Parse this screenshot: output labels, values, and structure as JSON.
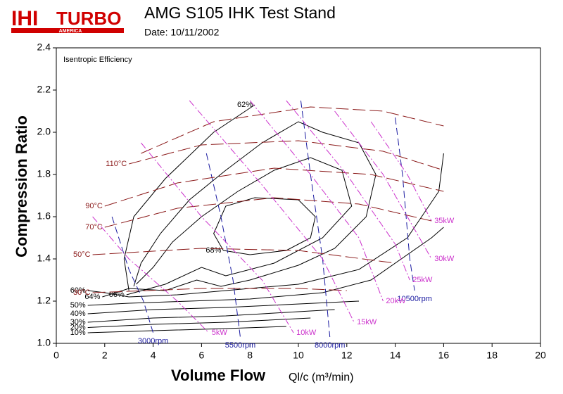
{
  "logo": {
    "brand": "IHI",
    "product": "TURBO",
    "region": "AMERICA"
  },
  "chart_data": {
    "type": "contour",
    "title": "AMG S105 IHK Test Stand",
    "subtitle": "Date: 10/11/2002",
    "annotation": "Isentropic Efficiency",
    "ylabel": "Compression Ratio",
    "xlabel": "Volume Flow",
    "xunit": "Ql/c (m³/min)",
    "xlim": [
      0,
      20
    ],
    "ylim": [
      1.0,
      2.4
    ],
    "xticks": [
      0,
      2,
      4,
      6,
      8,
      10,
      12,
      14,
      16,
      18,
      20
    ],
    "yticks": [
      {
        "value": 1.0,
        "label": "1.0"
      },
      1.2,
      1.4,
      1.6,
      1.8,
      {
        "value": 2.0,
        "label": "2.0"
      },
      2.2,
      2.4
    ],
    "groups": [
      {
        "name": "efficiency",
        "color": "#000000",
        "series": [
          {
            "name": "10%",
            "x": [
              1.3,
              4,
              7,
              9.5
            ],
            "y": [
              1.05,
              1.06,
              1.07,
              1.08
            ]
          },
          {
            "name": "20%",
            "x": [
              1.3,
              4,
              7,
              10.5
            ],
            "y": [
              1.075,
              1.09,
              1.1,
              1.12
            ]
          },
          {
            "name": "30%",
            "x": [
              1.3,
              4,
              7,
              11.5
            ],
            "y": [
              1.1,
              1.12,
              1.13,
              1.16
            ]
          },
          {
            "name": "40%",
            "x": [
              1.3,
              4,
              7,
              12.5
            ],
            "y": [
              1.14,
              1.16,
              1.17,
              1.2
            ]
          },
          {
            "name": "50%",
            "x": [
              1.3,
              3,
              5.5,
              8,
              11,
              13,
              15.5,
              16
            ],
            "y": [
              1.18,
              1.19,
              1.2,
              1.21,
              1.24,
              1.3,
              1.5,
              1.55
            ]
          },
          {
            "name": "60%",
            "x": [
              1.3,
              2,
              3,
              5,
              7,
              10,
              12.5,
              14.5,
              15.8,
              16
            ],
            "y": [
              1.25,
              1.24,
              1.22,
              1.23,
              1.25,
              1.28,
              1.35,
              1.5,
              1.72,
              1.9
            ]
          },
          {
            "name": "64%",
            "x": [
              1.9,
              3,
              4.5,
              5.8,
              6.8,
              8,
              10,
              11.5,
              12.8,
              13.2,
              12.5,
              11,
              10,
              8.5,
              7,
              5.5,
              4.3,
              3.5,
              3.2
            ],
            "y": [
              1.22,
              1.26,
              1.25,
              1.3,
              1.27,
              1.3,
              1.37,
              1.45,
              1.6,
              1.8,
              1.95,
              2.0,
              2.05,
              1.95,
              1.82,
              1.68,
              1.52,
              1.38,
              1.27
            ]
          },
          {
            "name": "66%",
            "x": [
              2.9,
              4.5,
              6,
              7,
              9,
              11,
              12.2,
              11.8,
              10.5,
              9,
              7.5,
              6,
              4.8,
              4,
              3.3
            ],
            "y": [
              1.23,
              1.28,
              1.36,
              1.32,
              1.38,
              1.5,
              1.65,
              1.82,
              1.88,
              1.82,
              1.72,
              1.6,
              1.48,
              1.36,
              1.28
            ]
          },
          {
            "name": "68%",
            "x": [
              6.9,
              6.5,
              7,
              8.2,
              10,
              10.7,
              10.5,
              9.5,
              8,
              6.9
            ],
            "y": [
              1.44,
              1.52,
              1.65,
              1.69,
              1.68,
              1.6,
              1.5,
              1.44,
              1.42,
              1.44
            ]
          },
          {
            "name": "62%",
            "x": [
              8.2,
              6.5,
              4.5,
              3.2,
              2.8,
              3
            ],
            "y": [
              2.13,
              2.0,
              1.78,
              1.6,
              1.4,
              1.25
            ]
          }
        ]
      },
      {
        "name": "speed",
        "color": "#1a1aa0",
        "series": [
          {
            "name": "3000rpm",
            "x": [
              2.3,
              3.0,
              3.6,
              4.0
            ],
            "y": [
              1.6,
              1.35,
              1.2,
              1.05
            ]
          },
          {
            "name": "5500rpm",
            "x": [
              6.2,
              6.8,
              7.3,
              7.6
            ],
            "y": [
              1.9,
              1.6,
              1.3,
              1.03
            ]
          },
          {
            "name": "8000rpm",
            "x": [
              10.1,
              10.5,
              11,
              11.3
            ],
            "y": [
              2.15,
              1.8,
              1.4,
              1.03
            ]
          },
          {
            "name": "10500rpm",
            "x": [
              14.0,
              14.3,
              14.6,
              14.8
            ],
            "y": [
              2.07,
              1.8,
              1.4,
              1.25
            ]
          }
        ]
      },
      {
        "name": "temperature",
        "color": "#8b1a1a",
        "series": [
          {
            "name": "30°C",
            "x": [
              1.5,
              6,
              10,
              12
            ],
            "y": [
              1.24,
              1.26,
              1.26,
              1.25
            ]
          },
          {
            "name": "50°C",
            "x": [
              1.5,
              6,
              10,
              14
            ],
            "y": [
              1.42,
              1.45,
              1.44,
              1.38
            ]
          },
          {
            "name": "70°C",
            "x": [
              2,
              5,
              9,
              12.5,
              15.5
            ],
            "y": [
              1.55,
              1.64,
              1.69,
              1.66,
              1.58
            ]
          },
          {
            "name": "90°C",
            "x": [
              2,
              5,
              9,
              13,
              16
            ],
            "y": [
              1.65,
              1.76,
              1.83,
              1.8,
              1.72
            ]
          },
          {
            "name": "110°C",
            "x": [
              3,
              6,
              10,
              13.5,
              16
            ],
            "y": [
              1.85,
              1.94,
              1.96,
              1.91,
              1.82
            ]
          },
          {
            "x": [
              3.5,
              6.5,
              10.5,
              13.5,
              16
            ],
            "y": [
              1.9,
              2.05,
              2.12,
              2.1,
              2.03
            ]
          }
        ]
      },
      {
        "name": "power",
        "color": "#cc33cc",
        "series": [
          {
            "name": "5kW",
            "x": [
              1.5,
              3,
              5,
              6.3
            ],
            "y": [
              1.6,
              1.4,
              1.2,
              1.05
            ]
          },
          {
            "name": "10kW",
            "x": [
              3.5,
              6,
              8.5,
              9.8
            ],
            "y": [
              1.95,
              1.6,
              1.3,
              1.05
            ]
          },
          {
            "name": "15kW",
            "x": [
              5.5,
              8.5,
              11,
              12.3
            ],
            "y": [
              2.15,
              1.75,
              1.4,
              1.1
            ]
          },
          {
            "name": "20kW",
            "x": [
              8,
              10.5,
              12.5,
              13.5
            ],
            "y": [
              2.15,
              1.8,
              1.5,
              1.2
            ]
          },
          {
            "name": "25kW",
            "x": [
              9.5,
              12,
              14,
              14.6
            ],
            "y": [
              2.15,
              1.8,
              1.47,
              1.3
            ]
          },
          {
            "name": "30kW",
            "x": [
              11.5,
              13.5,
              15.5
            ],
            "y": [
              2.1,
              1.8,
              1.4
            ]
          },
          {
            "name": "35kW",
            "x": [
              13,
              14.5,
              15.5
            ],
            "y": [
              2.05,
              1.8,
              1.58
            ]
          }
        ]
      }
    ]
  }
}
